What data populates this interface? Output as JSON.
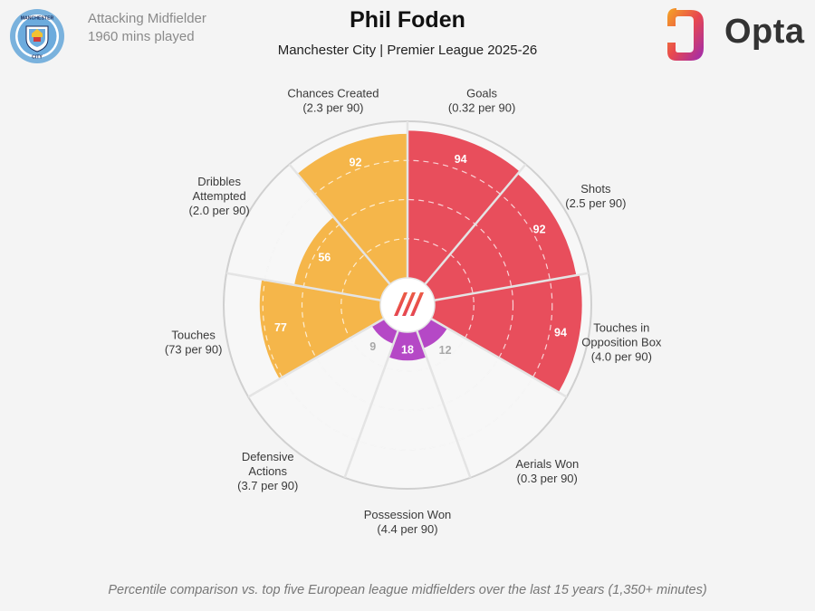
{
  "player": {
    "name": "Phil Foden",
    "position": "Attacking Midfielder",
    "minutes": "1960 mins played",
    "team_competition": "Manchester City | Premier League 2025-26"
  },
  "crest": {
    "text_top": "MANCHESTER",
    "text_bottom": "CITY"
  },
  "brand": {
    "name": "Opta"
  },
  "footnote": "Percentile comparison vs. top five European league midfielders over the last 15 years (1,350+ minutes)",
  "colors": {
    "attacking": "#e84e5c",
    "possession": "#f5b64a",
    "defending": "#b548c6",
    "background": "#f4f4f4"
  },
  "chart_data": {
    "type": "polar-bar",
    "scale": [
      0,
      100
    ],
    "grid": true,
    "categories": [
      {
        "label": [
          "Goals",
          "(0.32 per 90)"
        ],
        "value": 94,
        "group": "attacking"
      },
      {
        "label": [
          "Shots",
          "(2.5 per 90)"
        ],
        "value": 92,
        "group": "attacking"
      },
      {
        "label": [
          "Touches in",
          "Opposition Box",
          "(4.0 per 90)"
        ],
        "value": 94,
        "group": "attacking"
      },
      {
        "label": [
          "Aerials Won",
          "(0.3 per 90)"
        ],
        "value": 12,
        "group": "defending"
      },
      {
        "label": [
          "Possession Won",
          "(4.4 per 90)"
        ],
        "value": 18,
        "group": "defending"
      },
      {
        "label": [
          "Defensive",
          "Actions",
          "(3.7 per 90)"
        ],
        "value": 9,
        "group": "defending"
      },
      {
        "label": [
          "Touches",
          "(73 per 90)"
        ],
        "value": 77,
        "group": "possession"
      },
      {
        "label": [
          "Dribbles",
          "Attempted",
          "(2.0 per 90)"
        ],
        "value": 56,
        "group": "possession"
      },
      {
        "label": [
          "Chances Created",
          "(2.3 per 90)"
        ],
        "value": 92,
        "group": "possession"
      }
    ]
  }
}
